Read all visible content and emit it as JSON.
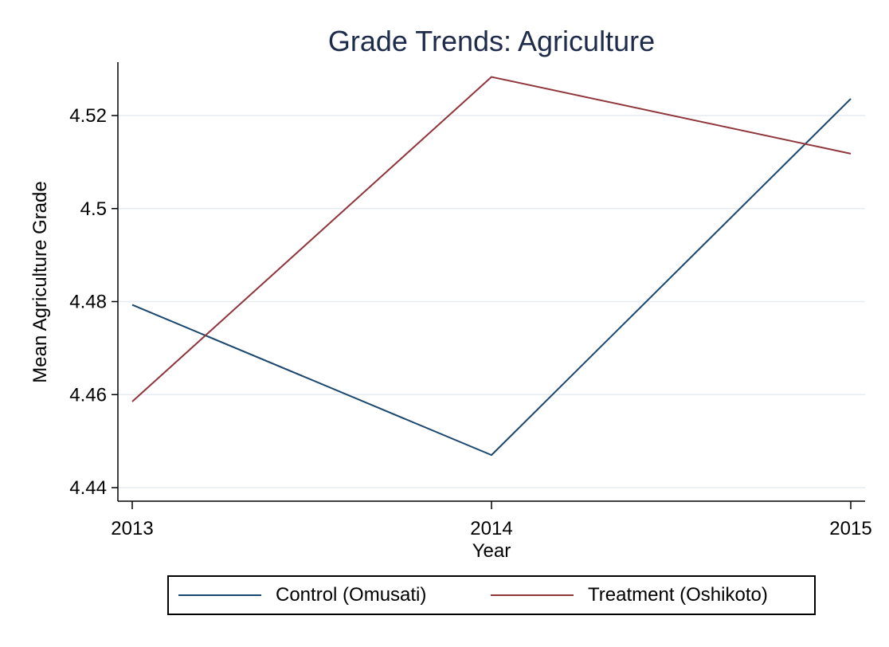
{
  "chart_data": {
    "type": "line",
    "title": "Grade Trends: Agriculture",
    "xlabel": "Year",
    "ylabel": "Mean Agriculture Grade",
    "x": [
      2013,
      2014,
      2015
    ],
    "x_ticks": [
      "2013",
      "2014",
      "2015"
    ],
    "y_ticks": [
      "4.44",
      "4.46",
      "4.48",
      "4.5",
      "4.52"
    ],
    "ylim": [
      4.437,
      4.531
    ],
    "grid": true,
    "legend_position": "bottom",
    "series": [
      {
        "name": "Control (Omusati)",
        "color": "#1a476f",
        "values": [
          4.4793,
          4.447,
          4.5236
        ]
      },
      {
        "name": "Treatment (Oshikoto)",
        "color": "#90353b",
        "values": [
          4.4585,
          4.5283,
          4.5118
        ]
      }
    ]
  }
}
